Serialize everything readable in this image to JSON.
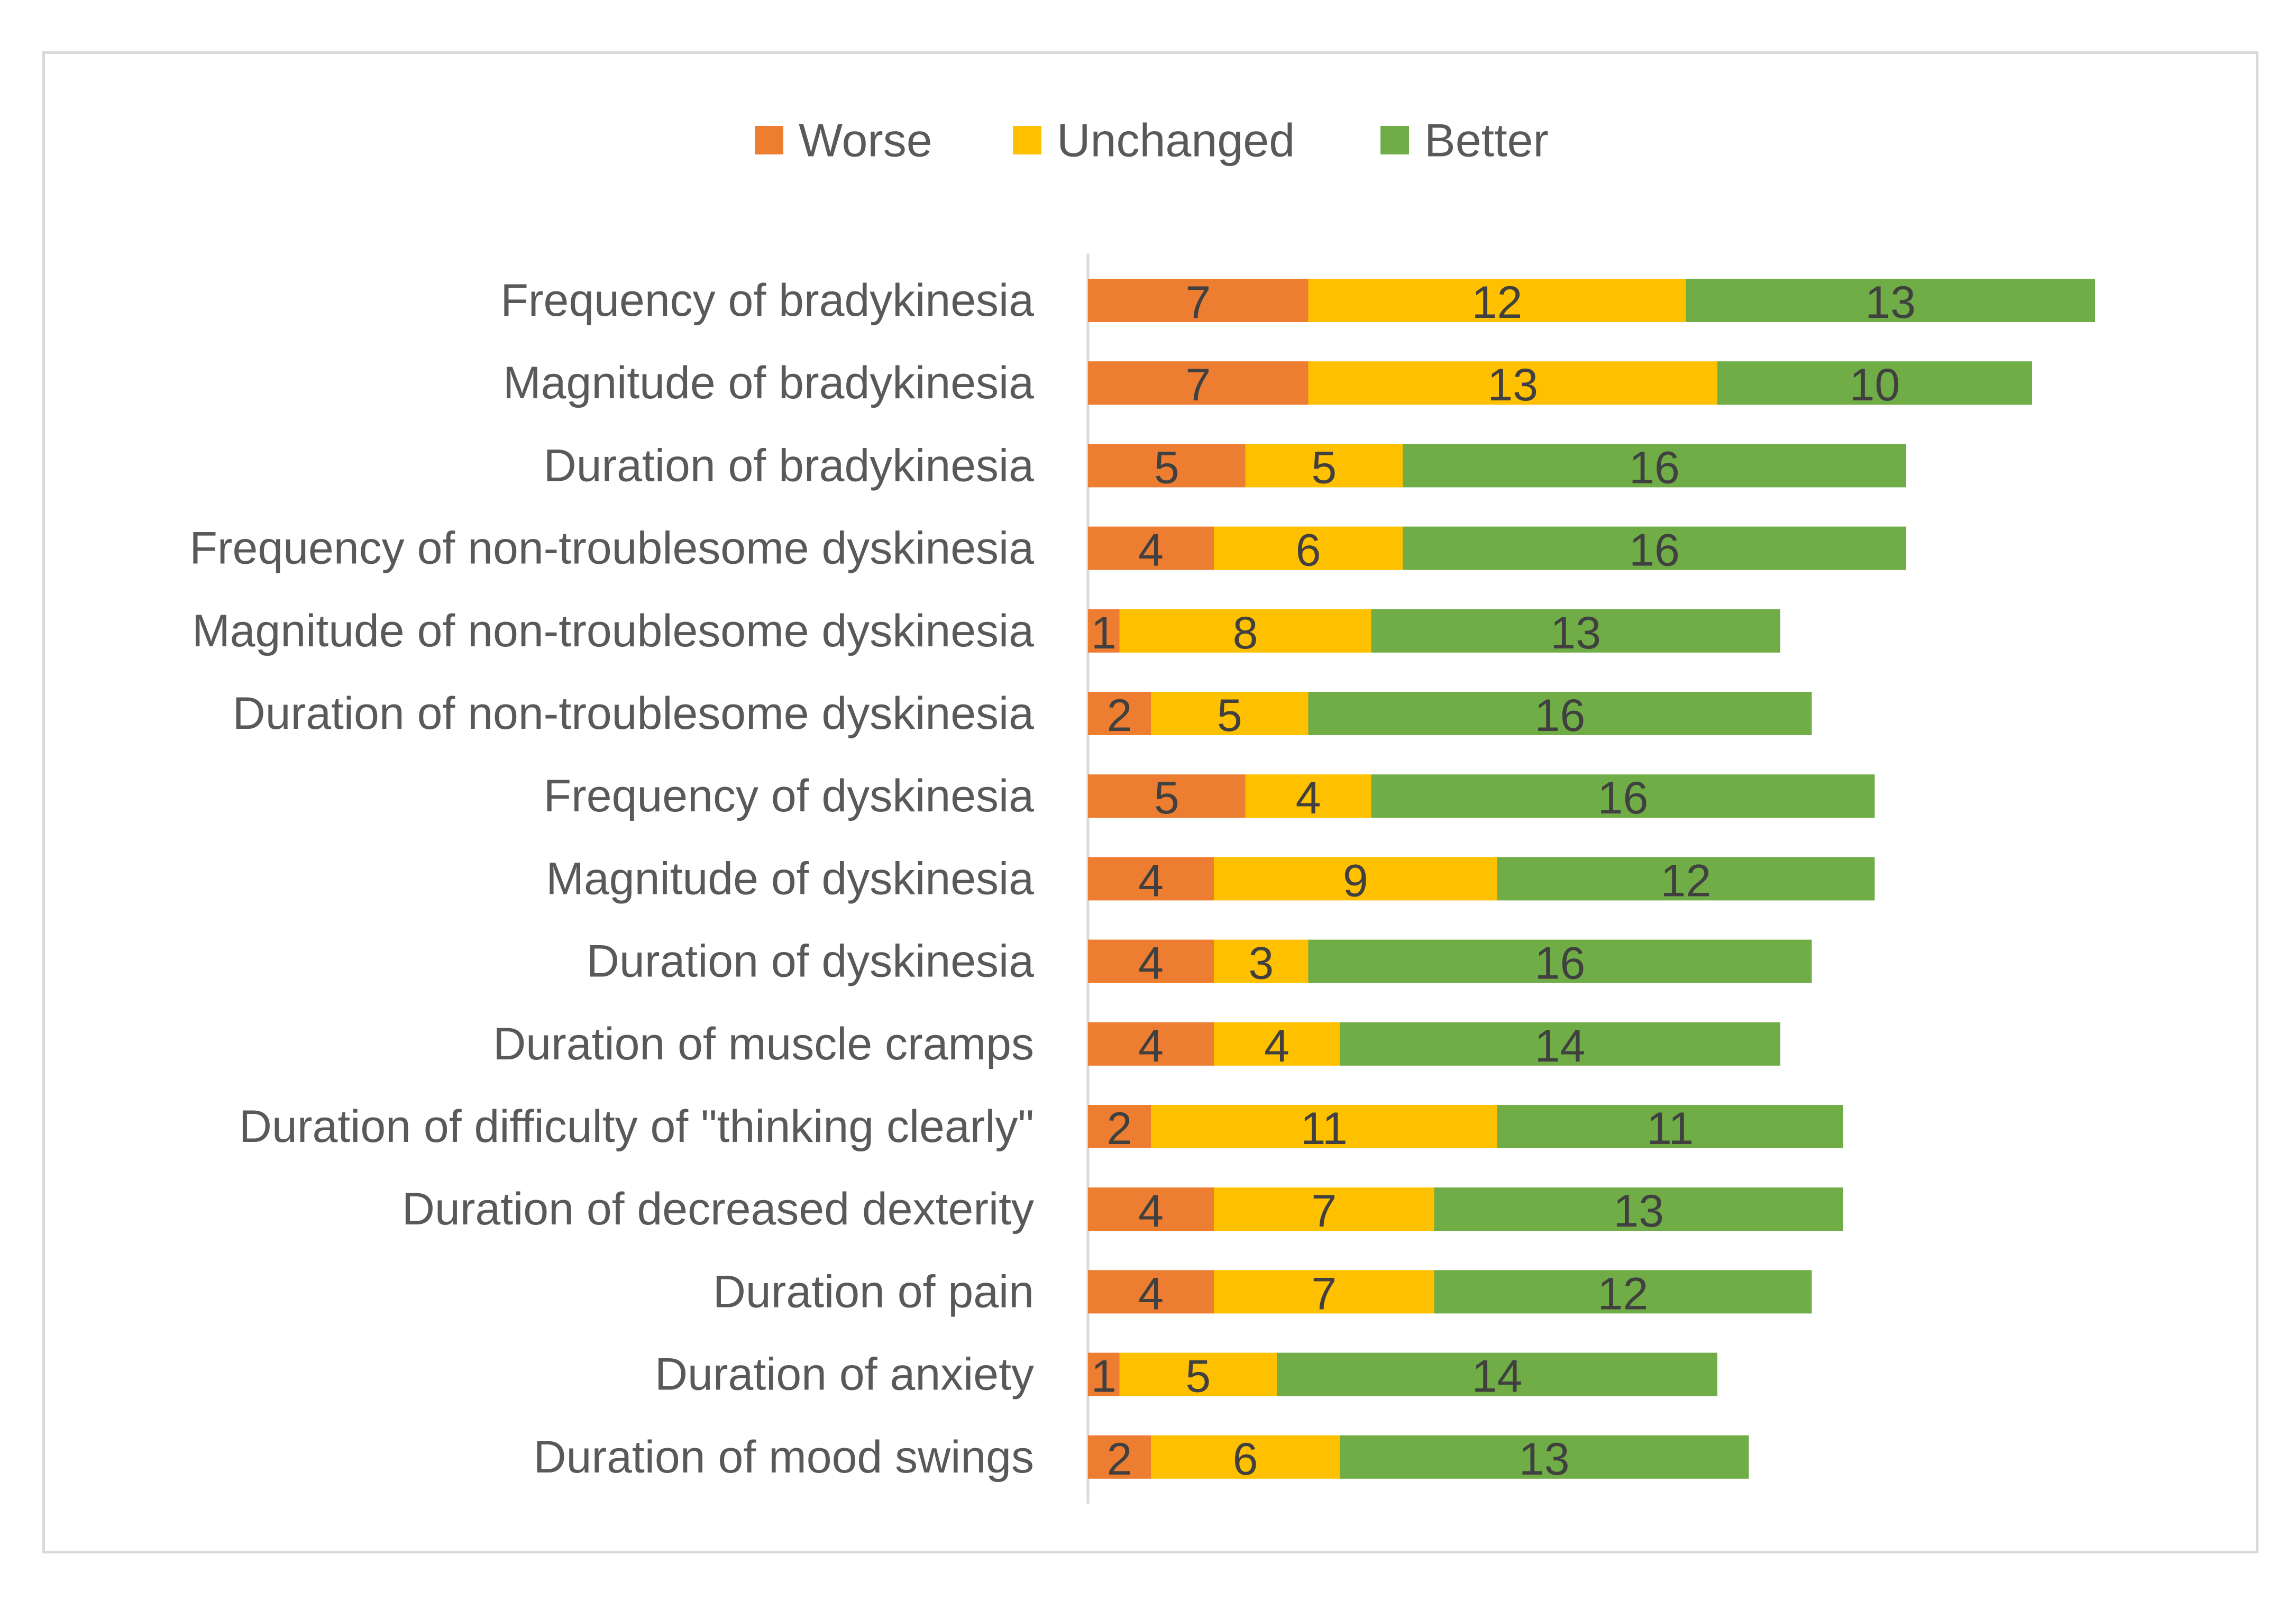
{
  "chart_data": {
    "type": "bar",
    "orientation": "horizontal",
    "stacked": true,
    "title": "",
    "xlabel": "",
    "ylabel": "",
    "grid": false,
    "legend_position": "top-center",
    "categories": [
      "Frequency of bradykinesia",
      "Magnitude of bradykinesia",
      "Duration of bradykinesia",
      "Frequency of non-troublesome dyskinesia",
      "Magnitude of non-troublesome dyskinesia",
      "Duration of non-troublesome dyskinesia",
      "Frequency of dyskinesia",
      "Magnitude of dyskinesia",
      "Duration of dyskinesia",
      "Duration of muscle cramps",
      "Duration of difficulty of \"thinking clearly\"",
      "Duration of decreased dexterity",
      "Duration of pain",
      "Duration of anxiety",
      "Duration of mood swings"
    ],
    "series": [
      {
        "name": "Worse",
        "color": "#ED7D31",
        "values": [
          7,
          7,
          5,
          4,
          1,
          2,
          5,
          4,
          4,
          4,
          2,
          4,
          4,
          1,
          2
        ]
      },
      {
        "name": "Unchanged",
        "color": "#FFC000",
        "values": [
          12,
          13,
          5,
          6,
          8,
          5,
          4,
          9,
          3,
          4,
          11,
          7,
          7,
          5,
          6
        ]
      },
      {
        "name": "Better",
        "color": "#70AD47",
        "values": [
          13,
          10,
          16,
          16,
          13,
          16,
          16,
          12,
          16,
          14,
          11,
          13,
          12,
          14,
          13
        ]
      }
    ],
    "xlim": [
      0,
      32
    ]
  }
}
